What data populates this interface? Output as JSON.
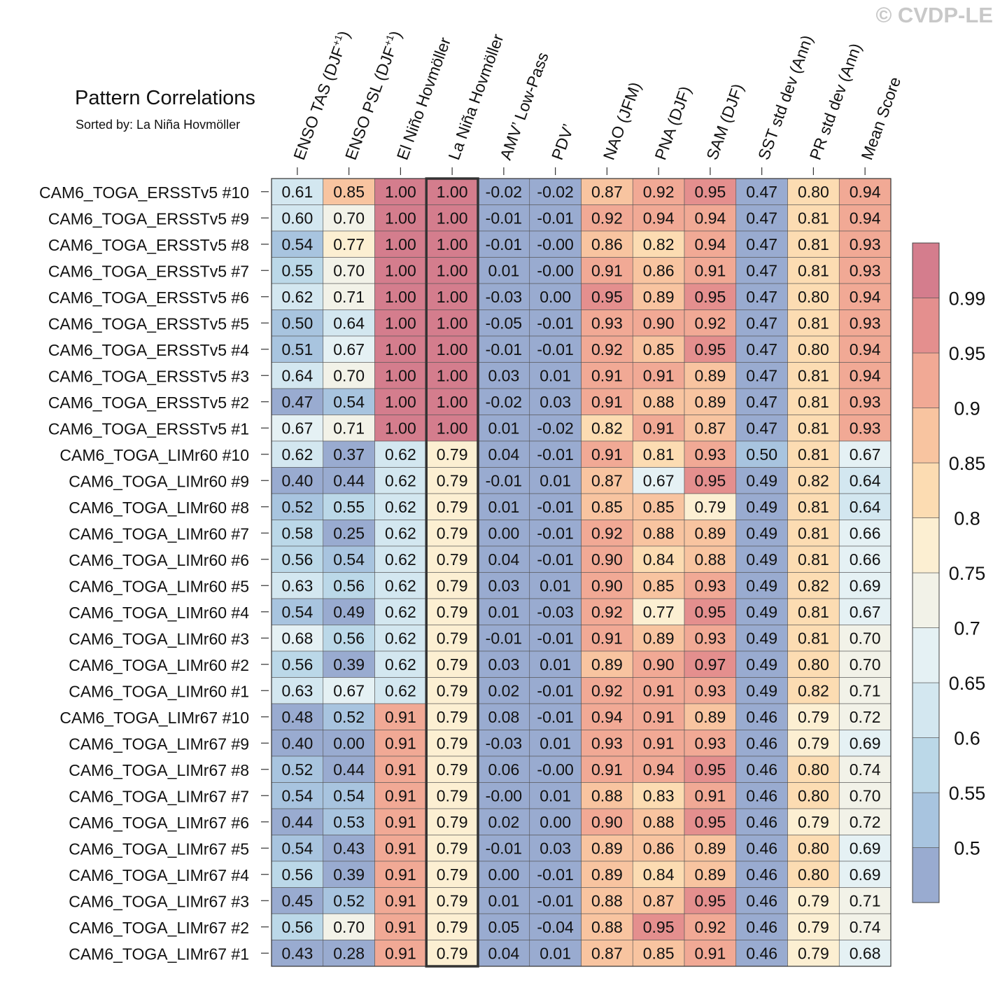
{
  "watermark": "© CVDP-LE",
  "title": "Pattern Correlations",
  "subtitle": "Sorted by: La Niña Hovmöller",
  "chart_data": {
    "type": "heatmap",
    "highlight_column": "La Niña Hovmöller",
    "columns": [
      {
        "label": "ENSO TAS (DJF",
        "sup": "+1",
        "tail": ")"
      },
      {
        "label": "ENSO PSL (DJF",
        "sup": "+1",
        "tail": ")"
      },
      {
        "label": "El Niño Hovmöller"
      },
      {
        "label": "La Niña Hovmöller"
      },
      {
        "label": "AMV’ Low-Pass"
      },
      {
        "label": "PDV’"
      },
      {
        "label": "NAO (JFM)"
      },
      {
        "label": "PNA (DJF)"
      },
      {
        "label": "SAM (DJF)"
      },
      {
        "label": "SST std dev (Ann)"
      },
      {
        "label": "PR std dev (Ann)"
      },
      {
        "label": "Mean Score"
      }
    ],
    "rows": [
      "CAM6_TOGA_ERSSTv5 #10",
      "CAM6_TOGA_ERSSTv5 #9",
      "CAM6_TOGA_ERSSTv5 #8",
      "CAM6_TOGA_ERSSTv5 #7",
      "CAM6_TOGA_ERSSTv5 #6",
      "CAM6_TOGA_ERSSTv5 #5",
      "CAM6_TOGA_ERSSTv5 #4",
      "CAM6_TOGA_ERSSTv5 #3",
      "CAM6_TOGA_ERSSTv5 #2",
      "CAM6_TOGA_ERSSTv5 #1",
      "CAM6_TOGA_LIMr60 #10",
      "CAM6_TOGA_LIMr60 #9",
      "CAM6_TOGA_LIMr60 #8",
      "CAM6_TOGA_LIMr60 #7",
      "CAM6_TOGA_LIMr60 #6",
      "CAM6_TOGA_LIMr60 #5",
      "CAM6_TOGA_LIMr60 #4",
      "CAM6_TOGA_LIMr60 #3",
      "CAM6_TOGA_LIMr60 #2",
      "CAM6_TOGA_LIMr60 #1",
      "CAM6_TOGA_LIMr67 #10",
      "CAM6_TOGA_LIMr67 #9",
      "CAM6_TOGA_LIMr67 #8",
      "CAM6_TOGA_LIMr67 #7",
      "CAM6_TOGA_LIMr67 #6",
      "CAM6_TOGA_LIMr67 #5",
      "CAM6_TOGA_LIMr67 #4",
      "CAM6_TOGA_LIMr67 #3",
      "CAM6_TOGA_LIMr67 #2",
      "CAM6_TOGA_LIMr67 #1"
    ],
    "values": [
      [
        "0.61",
        "0.85",
        "1.00",
        "1.00",
        "-0.02",
        "-0.02",
        "0.87",
        "0.92",
        "0.95",
        "0.47",
        "0.80",
        "0.94"
      ],
      [
        "0.60",
        "0.70",
        "1.00",
        "1.00",
        "-0.01",
        "-0.01",
        "0.92",
        "0.94",
        "0.94",
        "0.47",
        "0.81",
        "0.94"
      ],
      [
        "0.54",
        "0.77",
        "1.00",
        "1.00",
        "-0.01",
        "-0.00",
        "0.86",
        "0.82",
        "0.94",
        "0.47",
        "0.81",
        "0.93"
      ],
      [
        "0.55",
        "0.70",
        "1.00",
        "1.00",
        "0.01",
        "-0.00",
        "0.91",
        "0.86",
        "0.91",
        "0.47",
        "0.81",
        "0.93"
      ],
      [
        "0.62",
        "0.71",
        "1.00",
        "1.00",
        "-0.03",
        "0.00",
        "0.95",
        "0.89",
        "0.95",
        "0.47",
        "0.80",
        "0.94"
      ],
      [
        "0.50",
        "0.64",
        "1.00",
        "1.00",
        "-0.05",
        "-0.01",
        "0.93",
        "0.90",
        "0.92",
        "0.47",
        "0.81",
        "0.93"
      ],
      [
        "0.51",
        "0.67",
        "1.00",
        "1.00",
        "-0.01",
        "-0.01",
        "0.92",
        "0.85",
        "0.95",
        "0.47",
        "0.80",
        "0.94"
      ],
      [
        "0.64",
        "0.70",
        "1.00",
        "1.00",
        "0.03",
        "0.01",
        "0.91",
        "0.91",
        "0.89",
        "0.47",
        "0.81",
        "0.94"
      ],
      [
        "0.47",
        "0.54",
        "1.00",
        "1.00",
        "-0.02",
        "0.03",
        "0.91",
        "0.88",
        "0.89",
        "0.47",
        "0.81",
        "0.93"
      ],
      [
        "0.67",
        "0.71",
        "1.00",
        "1.00",
        "0.01",
        "-0.02",
        "0.82",
        "0.91",
        "0.87",
        "0.47",
        "0.81",
        "0.93"
      ],
      [
        "0.62",
        "0.37",
        "0.62",
        "0.79",
        "0.04",
        "-0.01",
        "0.91",
        "0.81",
        "0.93",
        "0.50",
        "0.81",
        "0.67"
      ],
      [
        "0.40",
        "0.44",
        "0.62",
        "0.79",
        "-0.01",
        "0.01",
        "0.87",
        "0.67",
        "0.95",
        "0.49",
        "0.82",
        "0.64"
      ],
      [
        "0.52",
        "0.55",
        "0.62",
        "0.79",
        "0.01",
        "-0.01",
        "0.85",
        "0.85",
        "0.79",
        "0.49",
        "0.81",
        "0.64"
      ],
      [
        "0.58",
        "0.25",
        "0.62",
        "0.79",
        "0.00",
        "-0.01",
        "0.92",
        "0.88",
        "0.89",
        "0.49",
        "0.81",
        "0.66"
      ],
      [
        "0.56",
        "0.54",
        "0.62",
        "0.79",
        "0.04",
        "-0.01",
        "0.90",
        "0.84",
        "0.88",
        "0.49",
        "0.81",
        "0.66"
      ],
      [
        "0.63",
        "0.56",
        "0.62",
        "0.79",
        "0.03",
        "0.01",
        "0.90",
        "0.85",
        "0.93",
        "0.49",
        "0.82",
        "0.69"
      ],
      [
        "0.54",
        "0.49",
        "0.62",
        "0.79",
        "0.01",
        "-0.03",
        "0.92",
        "0.77",
        "0.95",
        "0.49",
        "0.81",
        "0.67"
      ],
      [
        "0.68",
        "0.56",
        "0.62",
        "0.79",
        "-0.01",
        "-0.01",
        "0.91",
        "0.89",
        "0.93",
        "0.49",
        "0.81",
        "0.70"
      ],
      [
        "0.56",
        "0.39",
        "0.62",
        "0.79",
        "0.03",
        "0.01",
        "0.89",
        "0.90",
        "0.97",
        "0.49",
        "0.80",
        "0.70"
      ],
      [
        "0.63",
        "0.67",
        "0.62",
        "0.79",
        "0.02",
        "-0.01",
        "0.92",
        "0.91",
        "0.93",
        "0.49",
        "0.82",
        "0.71"
      ],
      [
        "0.48",
        "0.52",
        "0.91",
        "0.79",
        "0.08",
        "-0.01",
        "0.94",
        "0.91",
        "0.89",
        "0.46",
        "0.79",
        "0.72"
      ],
      [
        "0.40",
        "0.00",
        "0.91",
        "0.79",
        "-0.03",
        "0.01",
        "0.93",
        "0.91",
        "0.93",
        "0.46",
        "0.79",
        "0.69"
      ],
      [
        "0.52",
        "0.44",
        "0.91",
        "0.79",
        "0.06",
        "-0.00",
        "0.91",
        "0.94",
        "0.95",
        "0.46",
        "0.80",
        "0.74"
      ],
      [
        "0.54",
        "0.54",
        "0.91",
        "0.79",
        "-0.00",
        "0.01",
        "0.88",
        "0.83",
        "0.91",
        "0.46",
        "0.80",
        "0.70"
      ],
      [
        "0.44",
        "0.53",
        "0.91",
        "0.79",
        "0.02",
        "0.00",
        "0.90",
        "0.88",
        "0.95",
        "0.46",
        "0.79",
        "0.72"
      ],
      [
        "0.54",
        "0.43",
        "0.91",
        "0.79",
        "-0.01",
        "0.03",
        "0.89",
        "0.86",
        "0.89",
        "0.46",
        "0.80",
        "0.69"
      ],
      [
        "0.56",
        "0.39",
        "0.91",
        "0.79",
        "0.00",
        "-0.01",
        "0.89",
        "0.84",
        "0.89",
        "0.46",
        "0.80",
        "0.69"
      ],
      [
        "0.45",
        "0.52",
        "0.91",
        "0.79",
        "0.01",
        "-0.01",
        "0.88",
        "0.87",
        "0.95",
        "0.46",
        "0.79",
        "0.71"
      ],
      [
        "0.56",
        "0.70",
        "0.91",
        "0.79",
        "0.05",
        "-0.04",
        "0.88",
        "0.95",
        "0.92",
        "0.46",
        "0.79",
        "0.74"
      ],
      [
        "0.43",
        "0.28",
        "0.91",
        "0.79",
        "0.04",
        "0.01",
        "0.87",
        "0.85",
        "0.91",
        "0.46",
        "0.79",
        "0.68"
      ]
    ],
    "colorbar": {
      "levels": [
        "0.5",
        "0.55",
        "0.6",
        "0.65",
        "0.7",
        "0.75",
        "0.8",
        "0.85",
        "0.9",
        "0.95",
        "0.99"
      ],
      "colors": [
        "#99abd0",
        "#a8c4df",
        "#bbd8e8",
        "#d3e7f0",
        "#e5f1f4",
        "#f2f2e8",
        "#fcefd2",
        "#fcdcb2",
        "#f8c4a0",
        "#f1a995",
        "#e48f8e",
        "#d47d8d"
      ]
    }
  }
}
